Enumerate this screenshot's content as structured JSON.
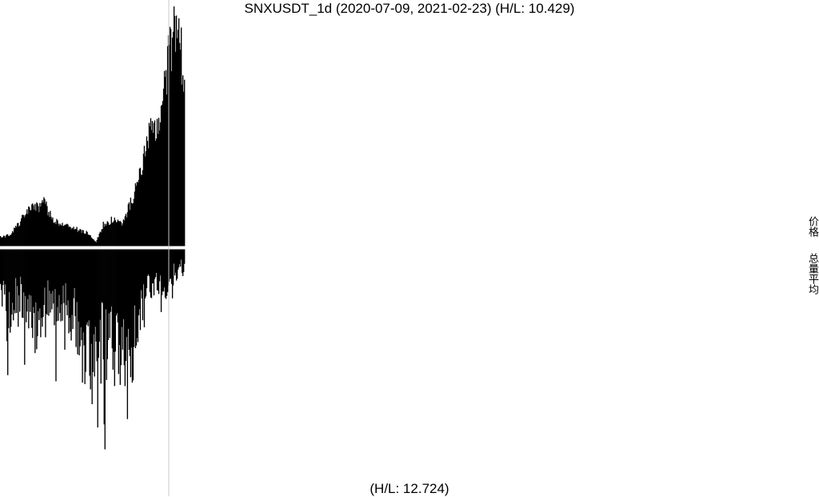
{
  "chart_data": {
    "type": "bar",
    "title": "SNXUSDT_1d (2020-07-09, 2021-02-23) (H/L: 10.429)",
    "bottom_label": "(H/L: 12.724)",
    "side_labels": {
      "price": "价格",
      "volume": "总量平均"
    },
    "x_range": [
      "2020-07-09",
      "2021-02-23"
    ],
    "upper_ratio": 10.429,
    "lower_ratio": 12.724,
    "colors": {
      "bars": "#000000",
      "separator": "#ffffff",
      "marker_line": "#c8c8c8"
    }
  }
}
